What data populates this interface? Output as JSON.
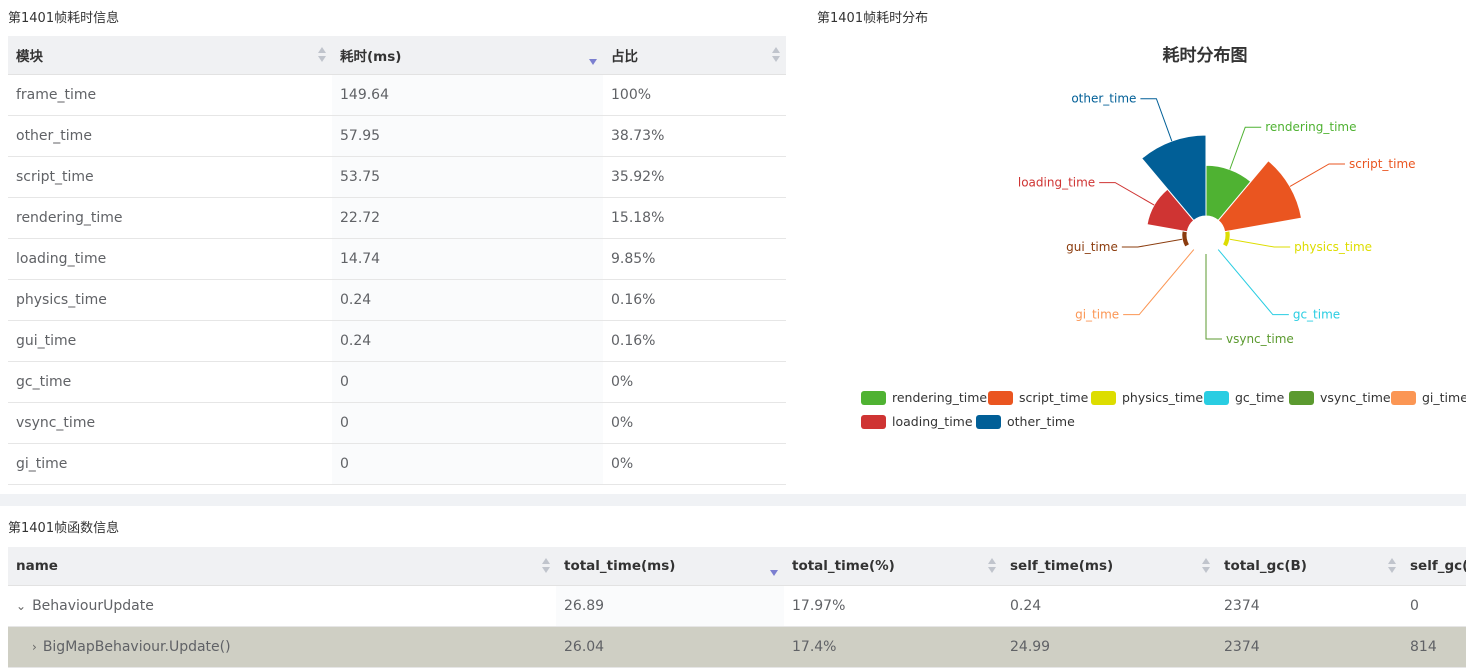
{
  "frame_table": {
    "title": "第1401帧耗时信息",
    "headers": [
      "模块",
      "耗时(ms)",
      "占比"
    ],
    "rows": [
      [
        "frame_time",
        "149.64",
        "100%"
      ],
      [
        "other_time",
        "57.95",
        "38.73%"
      ],
      [
        "script_time",
        "53.75",
        "35.92%"
      ],
      [
        "rendering_time",
        "22.72",
        "15.18%"
      ],
      [
        "loading_time",
        "14.74",
        "9.85%"
      ],
      [
        "physics_time",
        "0.24",
        "0.16%"
      ],
      [
        "gui_time",
        "0.24",
        "0.16%"
      ],
      [
        "gc_time",
        "0",
        "0%"
      ],
      [
        "vsync_time",
        "0",
        "0%"
      ],
      [
        "gi_time",
        "0",
        "0%"
      ]
    ]
  },
  "chart_panel": {
    "title": "第1401帧耗时分布"
  },
  "chart_data": {
    "type": "pie",
    "subtype": "rose",
    "title": "耗时分布图",
    "legend_position": "bottom",
    "slices": [
      {
        "name": "rendering_time",
        "value": 22.72,
        "color": "#4fb232"
      },
      {
        "name": "script_time",
        "value": 53.75,
        "color": "#ea5520"
      },
      {
        "name": "physics_time",
        "value": 0.24,
        "color": "#dddd00"
      },
      {
        "name": "gc_time",
        "value": 0,
        "color": "#29cde2"
      },
      {
        "name": "vsync_time",
        "value": 0,
        "color": "#5b9a2f"
      },
      {
        "name": "gi_time",
        "value": 0,
        "color": "#fb9654"
      },
      {
        "name": "gui_time",
        "value": 0.24,
        "color": "#8b3c0e"
      },
      {
        "name": "loading_time",
        "value": 14.74,
        "color": "#cf3433"
      },
      {
        "name": "other_time",
        "value": 57.95,
        "color": "#015f97"
      }
    ],
    "legend": [
      {
        "name": "rendering_time",
        "color": "#4fb232"
      },
      {
        "name": "script_time",
        "color": "#ea5520"
      },
      {
        "name": "physics_time",
        "color": "#dddd00"
      },
      {
        "name": "gc_time",
        "color": "#29cde2"
      },
      {
        "name": "vsync_time",
        "color": "#5b9a2f"
      },
      {
        "name": "gi_time",
        "color": "#fb9654"
      },
      {
        "name": "loading_time",
        "color": "#cf3433"
      },
      {
        "name": "other_time",
        "color": "#015f97"
      }
    ]
  },
  "func_table": {
    "title": "第1401帧函数信息",
    "headers": [
      "name",
      "total_time(ms)",
      "total_time(%)",
      "self_time(ms)",
      "total_gc(B)",
      "self_gc(B)"
    ],
    "rows": [
      {
        "arrow": "⌄",
        "values": [
          "BehaviourUpdate",
          "26.89",
          "17.97%",
          "0.24",
          "2374",
          "0"
        ]
      },
      {
        "arrow": "›",
        "values": [
          "BigMapBehaviour.Update()",
          "26.04",
          "17.4%",
          "24.99",
          "2374",
          "814"
        ]
      }
    ]
  }
}
